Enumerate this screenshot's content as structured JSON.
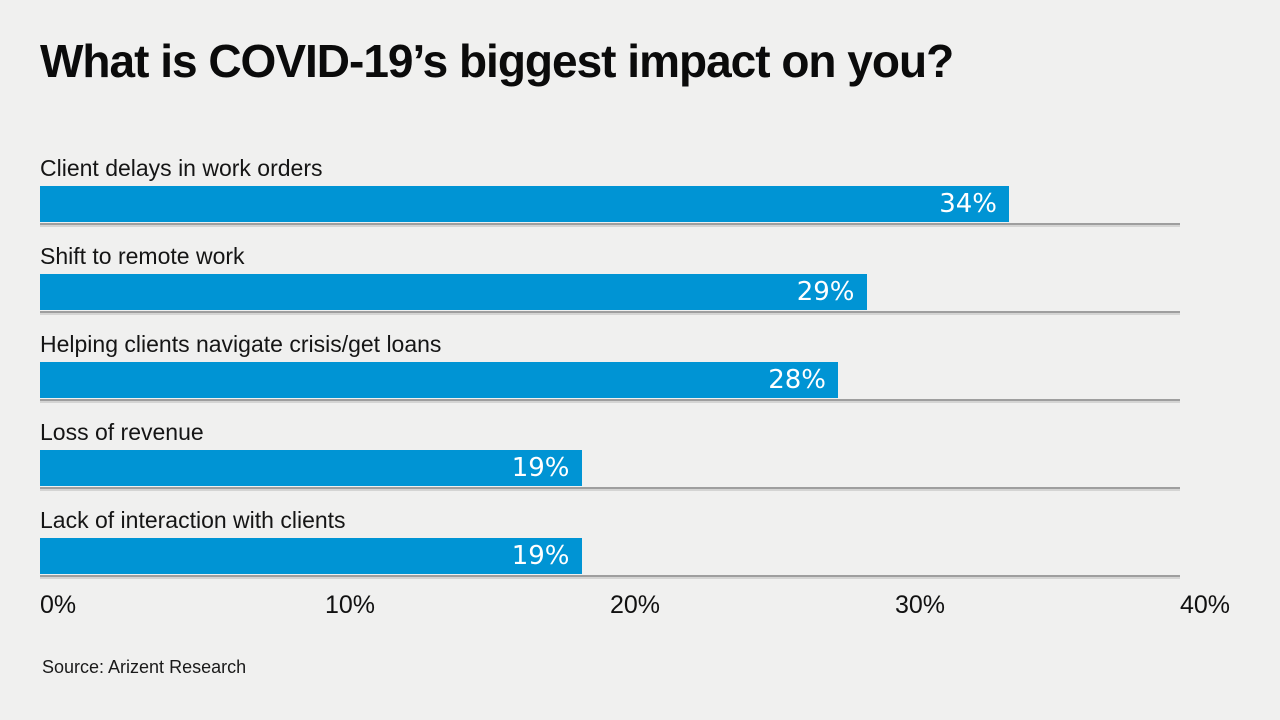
{
  "chart_data": {
    "type": "bar",
    "orientation": "horizontal",
    "title": "What is COVID-19’s biggest impact on you?",
    "categories": [
      "Client delays in work orders",
      "Shift to remote work",
      "Helping clients navigate crisis/get loans",
      "Loss of revenue",
      "Lack of interaction with clients"
    ],
    "values": [
      34,
      29,
      28,
      19,
      19
    ],
    "value_labels": [
      "34%",
      "29%",
      "28%",
      "19%",
      "19%"
    ],
    "x_ticks": [
      "0%",
      "10%",
      "20%",
      "30%",
      "40%"
    ],
    "xlim": [
      0,
      40
    ],
    "grid": "baseline-per-row",
    "legend": "none",
    "source": "Source: Arizent Research",
    "colors": {
      "bar": "#0094d4",
      "background": "#f0f0ef",
      "row_line": "#9e9e9e",
      "value_text": "#ffffff",
      "label_text": "#151515"
    }
  }
}
